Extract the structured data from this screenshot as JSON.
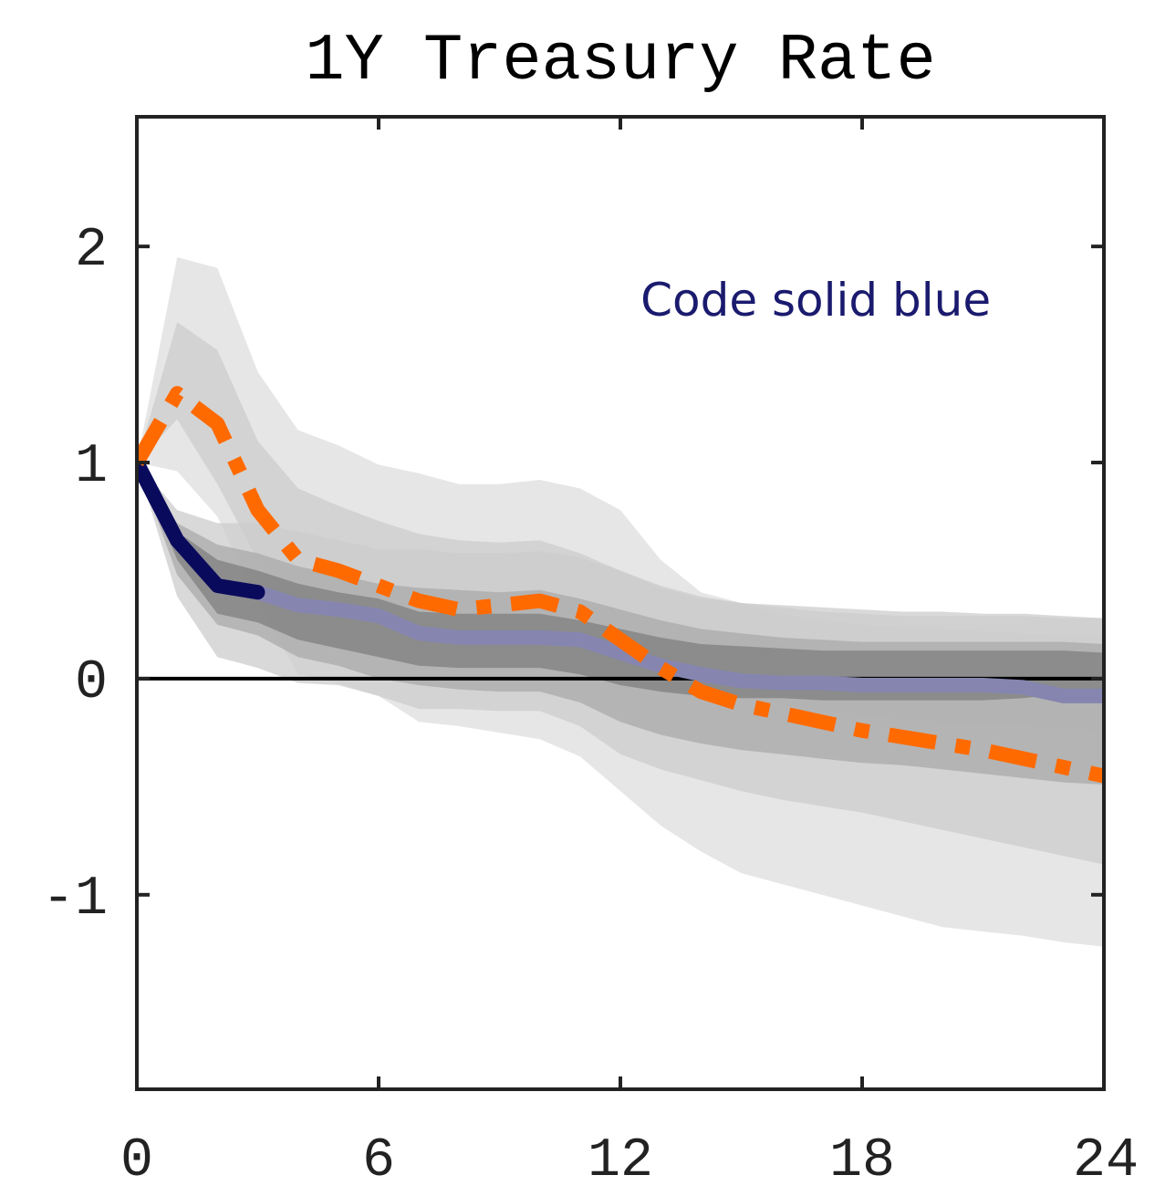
{
  "chart_data": {
    "type": "line",
    "title": "1Y Treasury Rate",
    "xlabel": "",
    "ylabel": "",
    "xlim": [
      0,
      24
    ],
    "ylim": [
      -1.9,
      2.6
    ],
    "xticks": [
      0,
      6,
      12,
      18,
      24
    ],
    "yticks": [
      2,
      1,
      0,
      -1
    ],
    "grid": false,
    "annotation": {
      "text": "Code solid blue",
      "color": "#1a1a6e",
      "x": 12.5,
      "y": 1.68
    },
    "zero_line": true,
    "colors": {
      "blue": "#0a0a5c",
      "blue_faded": "#8585b0",
      "orange": "#ff6a00",
      "band_outer": "#e6e6e6",
      "band_mid": "#cccccc",
      "band_inner": "#a9a9a9",
      "band_core": "#7f7f7f"
    },
    "x": [
      0,
      1,
      2,
      3,
      4,
      5,
      6,
      7,
      8,
      9,
      10,
      11,
      12,
      13,
      14,
      15,
      16,
      17,
      18,
      19,
      20,
      21,
      22,
      23,
      24
    ],
    "bands": [
      {
        "name": "outer",
        "upper": [
          1.0,
          1.95,
          1.9,
          1.42,
          1.15,
          1.08,
          0.99,
          0.95,
          0.9,
          0.9,
          0.92,
          0.88,
          0.78,
          0.55,
          0.4,
          0.35,
          0.3,
          0.27,
          0.25,
          0.24,
          0.23,
          0.22,
          0.21,
          0.2,
          0.2
        ],
        "lower": [
          1.0,
          0.96,
          0.75,
          0.35,
          0.02,
          -0.02,
          -0.08,
          -0.2,
          -0.22,
          -0.25,
          -0.28,
          -0.36,
          -0.52,
          -0.68,
          -0.8,
          -0.9,
          -0.95,
          -1.0,
          -1.05,
          -1.1,
          -1.15,
          -1.17,
          -1.19,
          -1.22,
          -1.24
        ]
      },
      {
        "name": "mid-upper",
        "upper": [
          1.0,
          1.65,
          1.52,
          1.1,
          0.88,
          0.8,
          0.73,
          0.67,
          0.64,
          0.63,
          0.64,
          0.58,
          0.5,
          0.42,
          0.37,
          0.35,
          0.34,
          0.33,
          0.32,
          0.31,
          0.31,
          0.3,
          0.3,
          0.29,
          0.28
        ],
        "lower": [
          1.0,
          1.2,
          0.9,
          0.55,
          0.38,
          0.3,
          0.25,
          0.22,
          0.2,
          0.18,
          0.16,
          0.12,
          0.05,
          -0.02,
          -0.06,
          -0.09,
          -0.12,
          -0.15,
          -0.17,
          -0.19,
          -0.2,
          -0.21,
          -0.22,
          -0.23,
          -0.24
        ]
      },
      {
        "name": "mid",
        "upper": [
          1.0,
          0.78,
          0.72,
          0.72,
          0.68,
          0.64,
          0.6,
          0.6,
          0.58,
          0.58,
          0.59,
          0.56,
          0.5,
          0.43,
          0.38,
          0.35,
          0.33,
          0.31,
          0.3,
          0.29,
          0.29,
          0.29,
          0.29,
          0.28,
          0.28
        ],
        "lower": [
          1.0,
          0.38,
          0.1,
          0.05,
          -0.02,
          -0.03,
          -0.08,
          -0.14,
          -0.14,
          -0.15,
          -0.15,
          -0.22,
          -0.35,
          -0.42,
          -0.47,
          -0.52,
          -0.56,
          -0.59,
          -0.62,
          -0.66,
          -0.7,
          -0.74,
          -0.78,
          -0.82,
          -0.86
        ]
      },
      {
        "name": "inner",
        "upper": [
          1.0,
          0.72,
          0.62,
          0.58,
          0.52,
          0.48,
          0.44,
          0.42,
          0.41,
          0.4,
          0.41,
          0.37,
          0.32,
          0.27,
          0.23,
          0.21,
          0.19,
          0.18,
          0.17,
          0.17,
          0.17,
          0.17,
          0.17,
          0.17,
          0.16
        ],
        "lower": [
          1.0,
          0.48,
          0.25,
          0.2,
          0.1,
          0.06,
          0.0,
          -0.03,
          -0.05,
          -0.06,
          -0.06,
          -0.11,
          -0.2,
          -0.26,
          -0.3,
          -0.33,
          -0.35,
          -0.37,
          -0.39,
          -0.4,
          -0.42,
          -0.44,
          -0.46,
          -0.48,
          -0.49
        ]
      },
      {
        "name": "core",
        "upper": [
          1.0,
          0.68,
          0.55,
          0.5,
          0.44,
          0.4,
          0.37,
          0.31,
          0.3,
          0.3,
          0.3,
          0.27,
          0.23,
          0.19,
          0.16,
          0.15,
          0.14,
          0.13,
          0.13,
          0.13,
          0.13,
          0.13,
          0.13,
          0.13,
          0.12
        ],
        "lower": [
          1.0,
          0.55,
          0.3,
          0.26,
          0.18,
          0.14,
          0.1,
          0.06,
          0.05,
          0.05,
          0.05,
          0.02,
          -0.03,
          -0.06,
          -0.08,
          -0.09,
          -0.09,
          -0.1,
          -0.1,
          -0.1,
          -0.1,
          -0.1,
          -0.09,
          -0.07,
          -0.06
        ]
      }
    ],
    "series": [
      {
        "name": "Code solid blue",
        "style": "solid",
        "values": [
          1.0,
          0.64,
          0.43,
          0.4,
          0.34,
          0.32,
          0.29,
          0.21,
          0.19,
          0.19,
          0.19,
          0.18,
          0.12,
          0.06,
          0.02,
          -0.01,
          -0.02,
          -0.02,
          -0.03,
          -0.03,
          -0.03,
          -0.03,
          -0.04,
          -0.08,
          -0.08
        ]
      },
      {
        "name": "",
        "style": "dash-dot",
        "values": [
          1.0,
          1.32,
          1.18,
          0.78,
          0.55,
          0.5,
          0.43,
          0.36,
          0.32,
          0.34,
          0.36,
          0.31,
          0.18,
          0.05,
          -0.06,
          -0.12,
          -0.16,
          -0.2,
          -0.24,
          -0.27,
          -0.3,
          -0.33,
          -0.37,
          -0.41,
          -0.45
        ]
      }
    ]
  }
}
